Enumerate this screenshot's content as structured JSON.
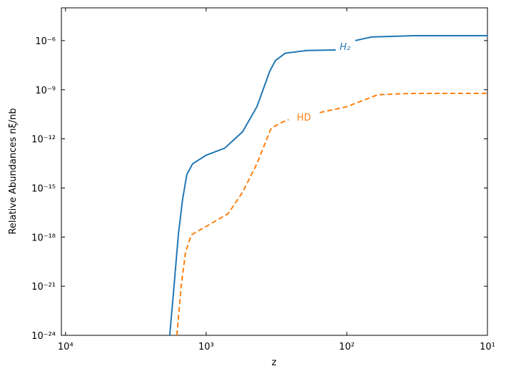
{
  "chart_data": {
    "type": "line",
    "xlabel": "z",
    "ylabel": "Relative Abundances nξ/nb",
    "xlog": true,
    "ylog": true,
    "xlim": [
      10700,
      10
    ],
    "ylim": [
      1e-24,
      0.0001
    ],
    "xticks": [
      {
        "value": 10000,
        "label": "10⁴"
      },
      {
        "value": 1000,
        "label": "10³"
      },
      {
        "value": 100,
        "label": "10²"
      },
      {
        "value": 10,
        "label": "10¹"
      }
    ],
    "yticks": [
      {
        "value": 1e-24,
        "label": "10⁻²⁴"
      },
      {
        "value": 1e-21,
        "label": "10⁻²¹"
      },
      {
        "value": 1e-18,
        "label": "10⁻¹⁸"
      },
      {
        "value": 1e-15,
        "label": "10⁻¹⁵"
      },
      {
        "value": 1e-12,
        "label": "10⁻¹²"
      },
      {
        "value": 1e-09,
        "label": "10⁻⁹"
      },
      {
        "value": 1e-06,
        "label": "10⁻⁶"
      }
    ],
    "annotations": [
      "H₂",
      "HD"
    ],
    "series": [
      {
        "name": "H₂",
        "color": "#1f77b4",
        "dash": false,
        "x": [
          1815,
          1692,
          1577,
          1471,
          1371,
          1248,
          1000,
          738,
          551,
          436,
          353,
          322,
          274,
          192,
          120,
          null,
          87,
          67,
          33,
          10
        ],
        "values": [
          1e-24,
          1e-21,
          1.35e-18,
          2e-16,
          6.7e-15,
          3e-14,
          1e-13,
          2.7e-13,
          2.7e-12,
          9e-11,
          1.35e-08,
          6e-08,
          1.7e-07,
          2.5e-07,
          2.7e-07,
          null,
          1e-06,
          1.65e-06,
          2e-06,
          2e-06
        ]
      },
      {
        "name": "HD",
        "color": "#ff7f0e",
        "dash": true,
        "x": [
          1614,
          1506,
          1403,
          1278,
          1000,
          697,
          551,
          436,
          345,
          290,
          259,
          null,
          156,
          101,
          60,
          33,
          10
        ],
        "values": [
          1e-24,
          1e-21,
          1.1e-19,
          1.35e-18,
          4.5e-18,
          2.7e-17,
          5.5e-16,
          3e-14,
          4.5e-12,
          1e-11,
          1.5e-11,
          null,
          4e-11,
          9e-11,
          5e-10,
          6e-10,
          6e-10
        ]
      }
    ]
  }
}
